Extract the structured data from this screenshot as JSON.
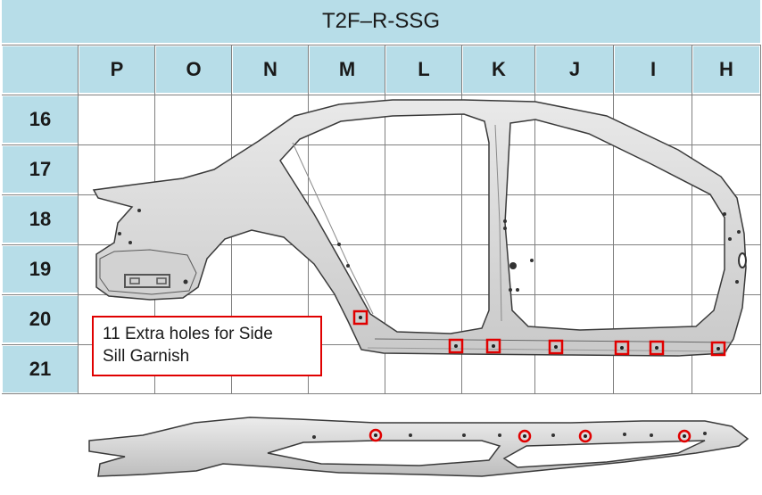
{
  "title": "T2F–R-SSG",
  "columns": [
    "P",
    "O",
    "N",
    "M",
    "L",
    "K",
    "J",
    "I",
    "H"
  ],
  "rows": [
    "16",
    "17",
    "18",
    "19",
    "20",
    "21"
  ],
  "callout": {
    "line1": "11 Extra holes for Side",
    "line2": "Sill Garnish"
  },
  "colors": {
    "header_bg": "#b7dde8",
    "grid_line": "#7f7f7f",
    "highlight": "#e00000",
    "part_fill": "#dadada",
    "part_edge": "#3a3a3a"
  }
}
